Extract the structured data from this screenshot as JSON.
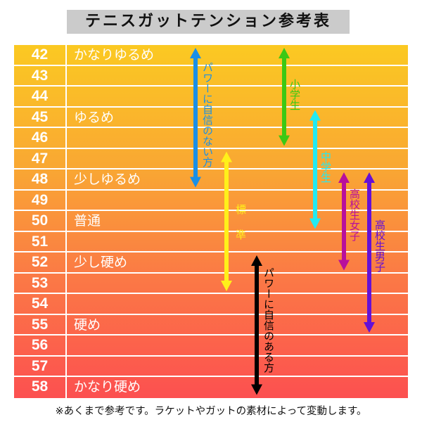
{
  "title": "テニスガットテンション参考表",
  "footnote": "※あくまで参考です。ラケットやガットの素材によって変動します。",
  "chart_data": {
    "type": "table",
    "rows": [
      {
        "tension": "42",
        "label": "かなりゆるめ"
      },
      {
        "tension": "43",
        "label": ""
      },
      {
        "tension": "44",
        "label": ""
      },
      {
        "tension": "45",
        "label": "ゆるめ"
      },
      {
        "tension": "46",
        "label": ""
      },
      {
        "tension": "47",
        "label": ""
      },
      {
        "tension": "48",
        "label": "少しゆるめ"
      },
      {
        "tension": "49",
        "label": ""
      },
      {
        "tension": "50",
        "label": "普通"
      },
      {
        "tension": "51",
        "label": ""
      },
      {
        "tension": "52",
        "label": "少し硬め"
      },
      {
        "tension": "53",
        "label": ""
      },
      {
        "tension": "54",
        "label": ""
      },
      {
        "tension": "55",
        "label": "硬め"
      },
      {
        "tension": "56",
        "label": ""
      },
      {
        "tension": "57",
        "label": ""
      },
      {
        "tension": "58",
        "label": "かなり硬め"
      }
    ],
    "ranges": [
      {
        "name": "パワーに自信のない方",
        "from": 42,
        "to": 48,
        "color": "#1a8fe6"
      },
      {
        "name": "小学生",
        "from": 42,
        "to": 46,
        "color": "#3cc814"
      },
      {
        "name": "中学生",
        "from": 45,
        "to": 50,
        "color": "#22eaf2"
      },
      {
        "name": "標 準",
        "from": 47,
        "to": 53,
        "color": "#fff01a"
      },
      {
        "name": "高校生女子",
        "from": 48,
        "to": 52,
        "color": "#b8109c"
      },
      {
        "name": "高校生男子",
        "from": 48,
        "to": 55,
        "color": "#6410d6"
      },
      {
        "name": "パワーに自信のある方",
        "from": 52,
        "to": 58,
        "color": "#000000"
      }
    ]
  }
}
